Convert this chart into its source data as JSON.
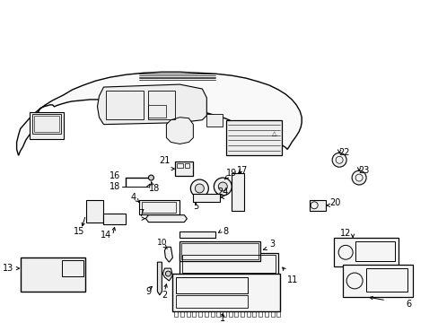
{
  "bg_color": "#ffffff",
  "lc": "#000000",
  "fig_w": 4.89,
  "fig_h": 3.6,
  "dpi": 100
}
